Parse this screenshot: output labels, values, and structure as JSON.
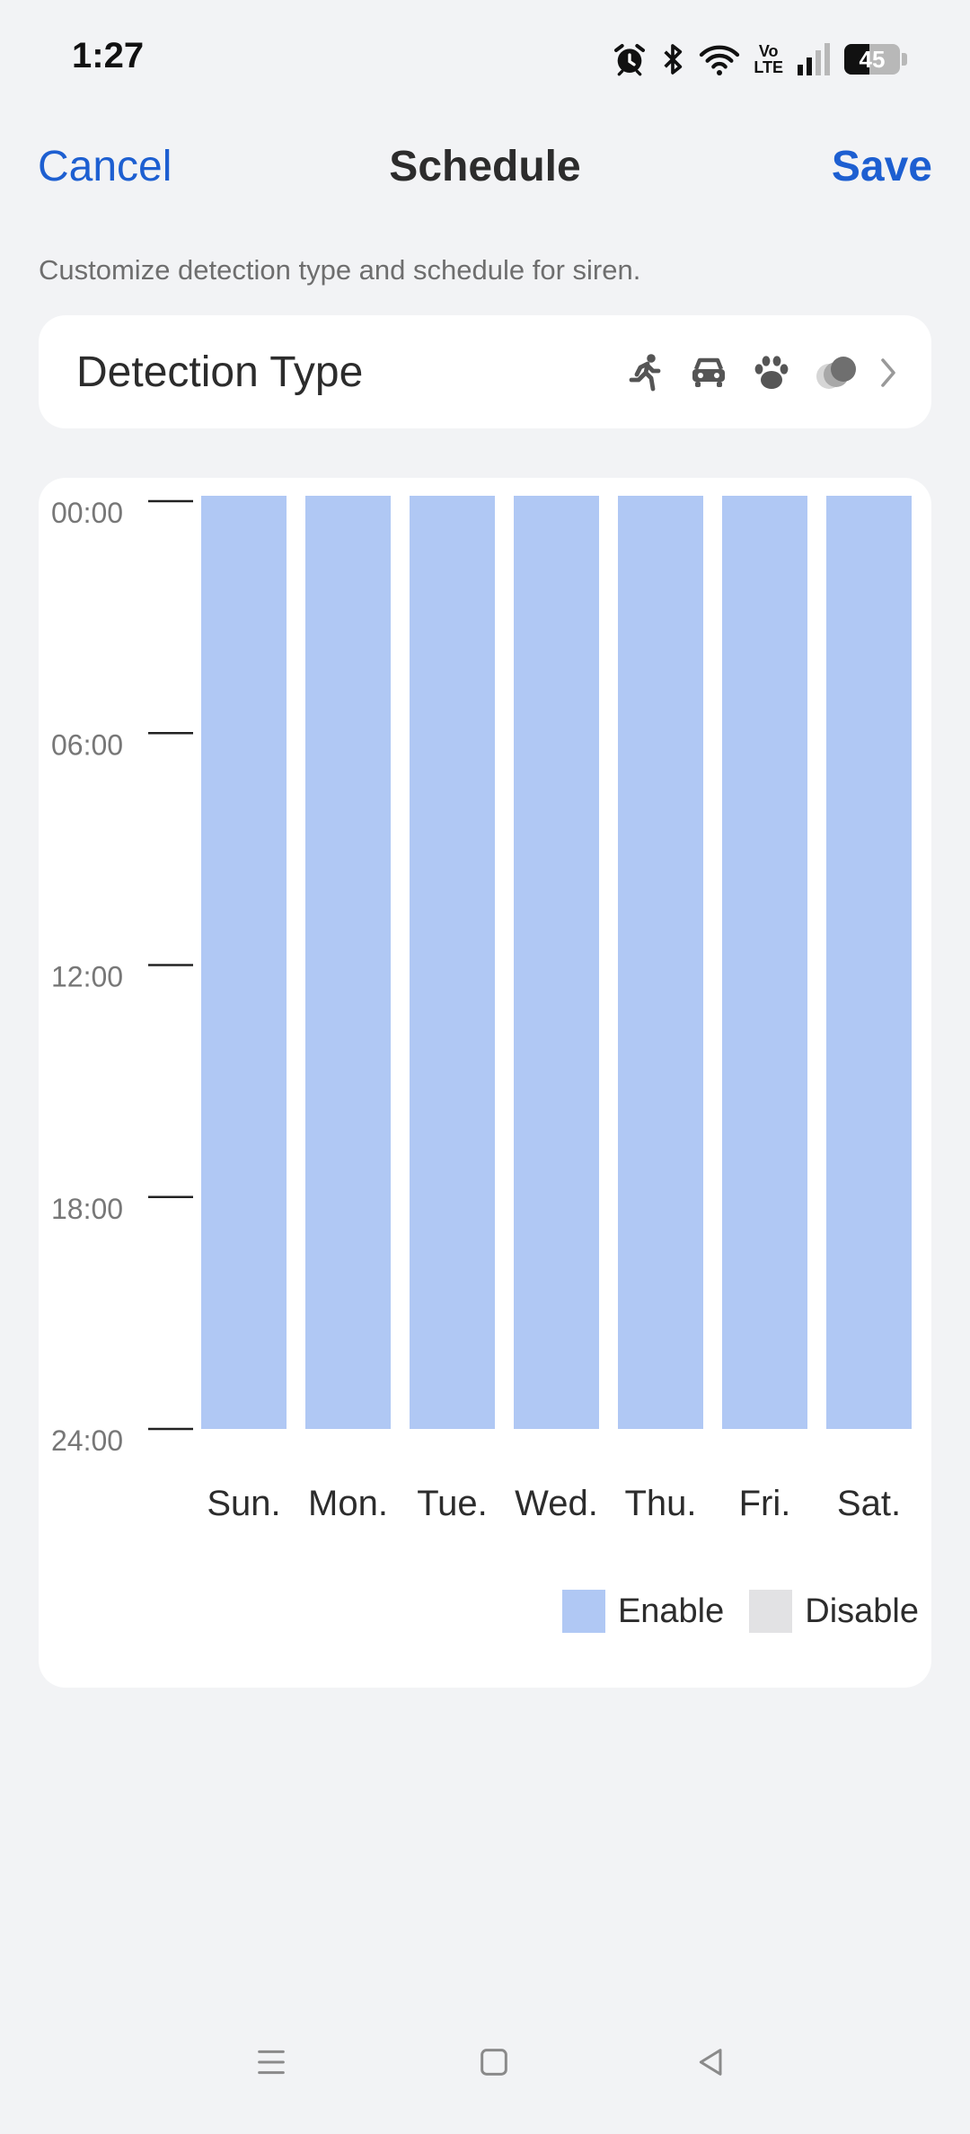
{
  "status_bar": {
    "time": "1:27",
    "volte_line1": "Vo",
    "volte_line2": "LTE",
    "battery": "45",
    "icons": [
      "alarm-icon",
      "bluetooth-icon",
      "wifi-icon",
      "volte-icon",
      "signal-icon",
      "battery-icon"
    ]
  },
  "nav": {
    "cancel": "Cancel",
    "title": "Schedule",
    "save": "Save"
  },
  "subtitle": "Customize detection type and schedule for siren.",
  "detection": {
    "label": "Detection Type",
    "icons": [
      "person-running-icon",
      "car-icon",
      "paw-icon",
      "more-dots-icon",
      "chevron-right-icon"
    ]
  },
  "colors": {
    "accent": "#1d5fd1",
    "enable": "#b0c8f4",
    "disable": "#e2e2e4",
    "background": "#f2f3f5"
  },
  "chart_data": {
    "type": "bar",
    "categories": [
      "Sun.",
      "Mon.",
      "Tue.",
      "Wed.",
      "Thu.",
      "Fri.",
      "Sat."
    ],
    "y_ticks": [
      "00:00",
      "06:00",
      "12:00",
      "18:00",
      "24:00"
    ],
    "ylim": [
      0,
      24
    ],
    "series": [
      {
        "name": "Enable",
        "ranges": [
          [
            0,
            24
          ],
          [
            0,
            24
          ],
          [
            0,
            24
          ],
          [
            0,
            24
          ],
          [
            0,
            24
          ],
          [
            0,
            24
          ],
          [
            0,
            24
          ]
        ]
      }
    ],
    "legend": {
      "position": "bottom-right",
      "items": [
        {
          "label": "Enable",
          "color": "#b0c8f4"
        },
        {
          "label": "Disable",
          "color": "#e2e2e4"
        }
      ]
    }
  },
  "system_nav": {
    "icons": [
      "menu-icon",
      "home-icon",
      "back-icon"
    ]
  }
}
